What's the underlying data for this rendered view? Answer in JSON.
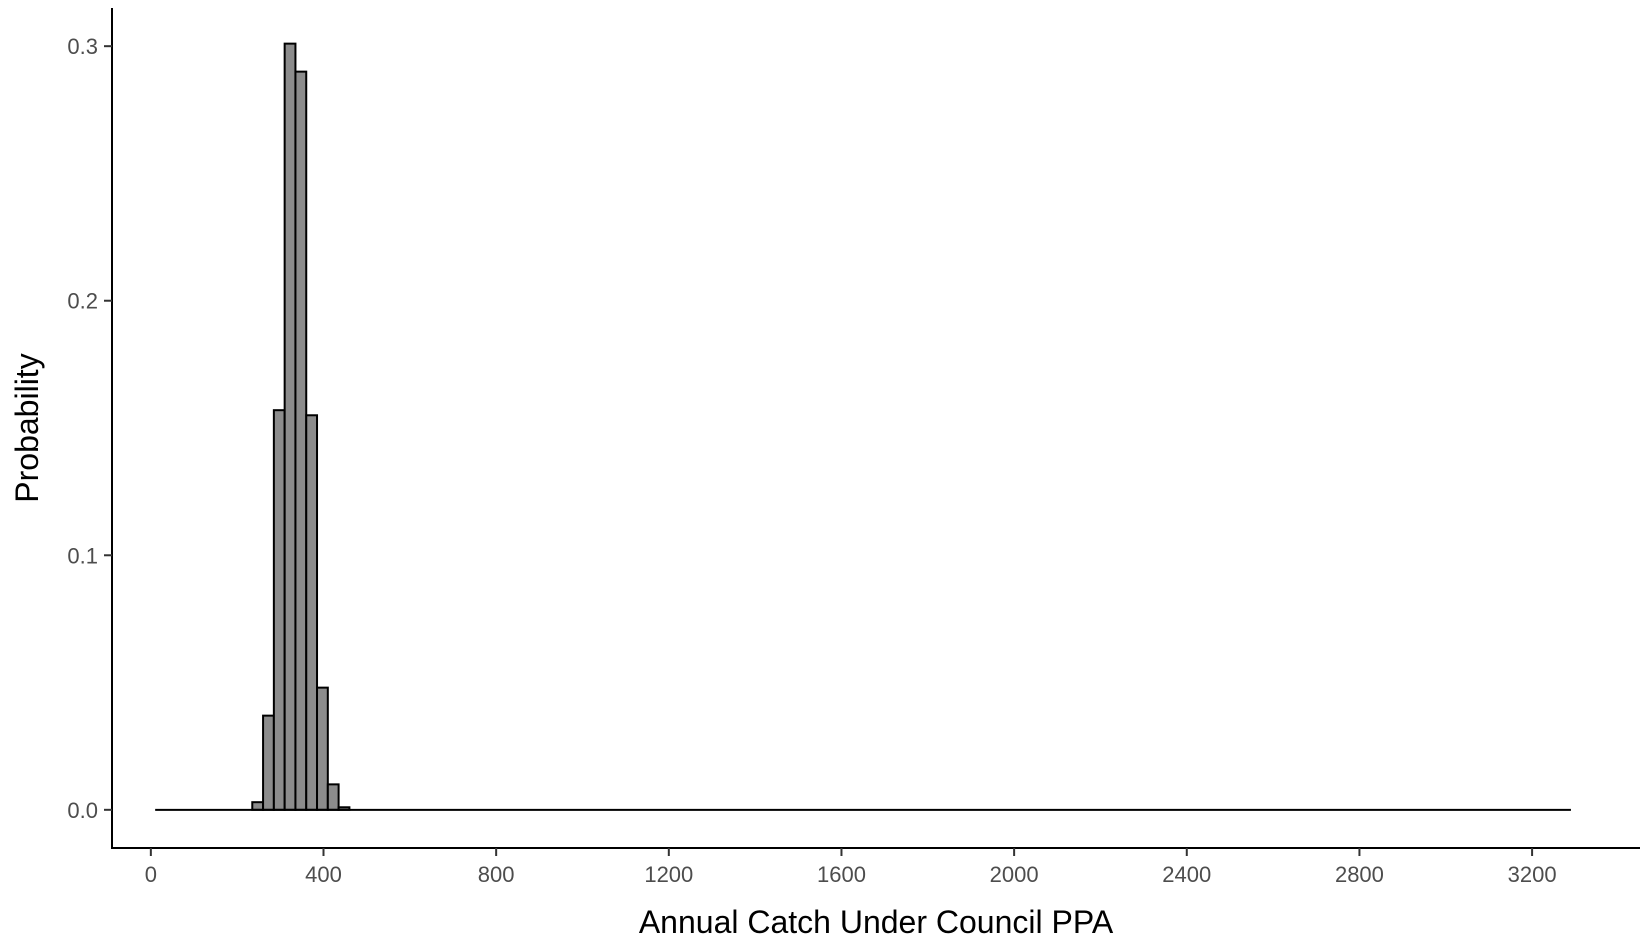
{
  "chart_data": {
    "type": "bar",
    "title": "",
    "xlabel": "Annual Catch Under Council PPA",
    "ylabel": "Probability",
    "xlim": [
      -90,
      3450
    ],
    "ylim": [
      -0.015,
      0.315
    ],
    "x_ticks": [
      0,
      400,
      800,
      1200,
      1600,
      2000,
      2400,
      2800,
      3200
    ],
    "y_ticks": [
      0.0,
      0.1,
      0.2,
      0.3
    ],
    "x_tick_labels": [
      "0",
      "400",
      "800",
      "1200",
      "1600",
      "2000",
      "2400",
      "2800",
      "3200"
    ],
    "y_tick_labels": [
      "0.0",
      "0.1",
      "0.2",
      "0.3"
    ],
    "bin_width": 25,
    "bins": [
      {
        "start": 10,
        "value": 0.0
      },
      {
        "start": 235,
        "value": 0.003
      },
      {
        "start": 260,
        "value": 0.037
      },
      {
        "start": 285,
        "value": 0.157
      },
      {
        "start": 310,
        "value": 0.301
      },
      {
        "start": 335,
        "value": 0.29
      },
      {
        "start": 360,
        "value": 0.155
      },
      {
        "start": 385,
        "value": 0.048
      },
      {
        "start": 410,
        "value": 0.01
      },
      {
        "start": 435,
        "value": 0.001
      },
      {
        "start": 460,
        "value": 0.0
      },
      {
        "start": 3290,
        "value": 0.0
      }
    ],
    "baseline_range": [
      10,
      3290
    ],
    "bar_fill": "#8c8c8c",
    "bar_stroke": "#000000",
    "grid": false,
    "legend": "none"
  }
}
